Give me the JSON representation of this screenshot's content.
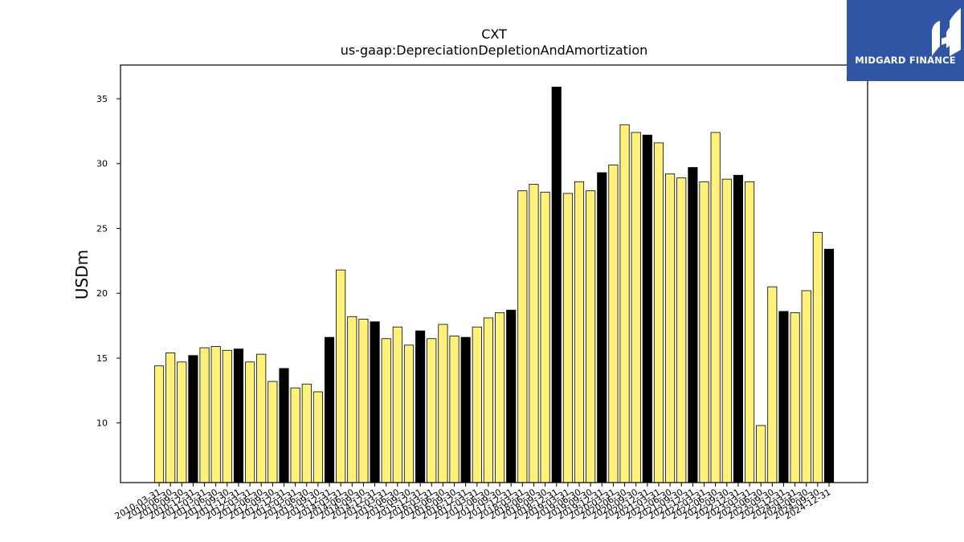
{
  "brand": {
    "name": "MIDGARD FINANCE",
    "background": "#2f55a4"
  },
  "chart_data": {
    "type": "bar",
    "title": "CXT",
    "subtitle": "us-gaap:DepreciationDepletionAndAmortization",
    "xlabel": "",
    "ylabel": "USDm",
    "ylim": [
      5.4,
      37.6
    ],
    "yticks": [
      10,
      15,
      20,
      25,
      30,
      35
    ],
    "colors": {
      "quarter": "#fff17a",
      "year_end": "#000000",
      "edge": "#000000"
    },
    "categories": [
      "2010-03-31",
      "2010-06-30",
      "2010-09-30",
      "2010-12-31",
      "2011-03-31",
      "2011-06-30",
      "2011-09-30",
      "2011-12-31",
      "2012-03-31",
      "2012-06-30",
      "2012-09-30",
      "2012-12-31",
      "2013-03-31",
      "2013-06-30",
      "2013-09-30",
      "2013-12-31",
      "2014-03-31",
      "2014-06-30",
      "2014-09-30",
      "2014-12-31",
      "2015-03-31",
      "2015-06-30",
      "2015-09-30",
      "2015-12-31",
      "2016-03-31",
      "2016-06-30",
      "2016-09-30",
      "2016-12-31",
      "2017-03-31",
      "2017-06-30",
      "2017-09-30",
      "2017-12-31",
      "2018-03-31",
      "2018-06-30",
      "2018-09-30",
      "2018-12-31",
      "2019-03-31",
      "2019-06-30",
      "2019-09-30",
      "2019-12-31",
      "2020-03-31",
      "2020-06-30",
      "2020-09-30",
      "2020-12-31",
      "2021-03-31",
      "2021-06-30",
      "2021-09-30",
      "2021-12-31",
      "2022-03-31",
      "2022-06-30",
      "2022-09-30",
      "2022-12-31",
      "2023-03-31",
      "2023-06-30",
      "2023-09-30",
      "2023-12-31",
      "2024-03-31",
      "2024-06-30",
      "2024-09-30",
      "2024-12-31"
    ],
    "values": [
      14.4,
      15.4,
      14.7,
      15.2,
      15.8,
      15.9,
      15.6,
      15.7,
      14.7,
      15.3,
      13.2,
      14.2,
      12.7,
      13.0,
      12.4,
      16.6,
      21.8,
      18.2,
      18.0,
      17.8,
      16.5,
      17.4,
      16.0,
      17.1,
      16.5,
      17.6,
      16.7,
      16.6,
      17.4,
      18.1,
      18.5,
      18.7,
      27.9,
      28.4,
      27.8,
      35.9,
      27.7,
      28.6,
      27.9,
      29.3,
      29.9,
      33.0,
      32.4,
      32.2,
      31.6,
      29.2,
      28.9,
      29.7,
      28.6,
      32.4,
      28.8,
      29.1,
      28.6,
      9.8,
      20.5,
      18.6,
      18.5,
      20.2,
      24.7,
      23.4
    ]
  }
}
